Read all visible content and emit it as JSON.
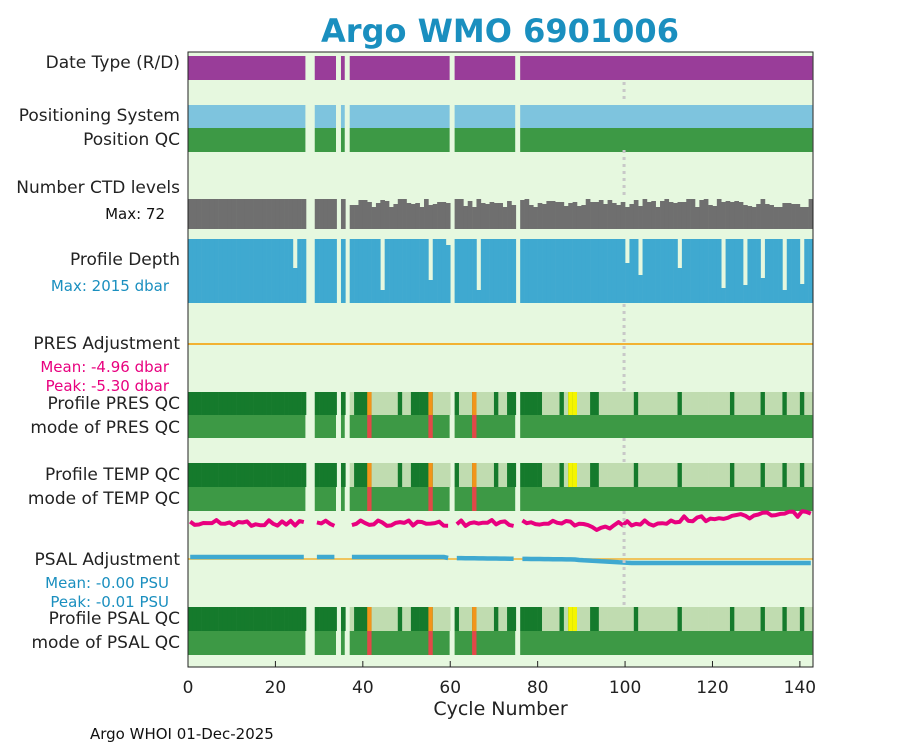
{
  "header": {
    "title": "Argo WMO 6901006"
  },
  "footer": {
    "text": "Argo WHOI 01-Dec-2025"
  },
  "rows": {
    "date_type": "Date Type (R/D)",
    "positioning_system": "Positioning System",
    "position_qc": "Position QC",
    "number_ctd": "Number CTD levels",
    "ctd_max": "Max: 72",
    "profile_depth": "Profile Depth",
    "depth_max": "Max: 2015 dbar",
    "pres_adjustment": "PRES Adjustment",
    "pres_mean": "Mean: -4.96 dbar",
    "pres_peak": "Peak: -5.30 dbar",
    "profile_pres_qc": "Profile PRES QC",
    "mode_pres_qc": "mode of PRES QC",
    "profile_temp_qc": "Profile TEMP QC",
    "mode_temp_qc": "mode of TEMP QC",
    "psal_adjustment": "PSAL Adjustment",
    "psal_mean": "Mean: -0.00 PSU",
    "psal_peak": "Peak: -0.01 PSU",
    "profile_psal_qc": "Profile PSAL QC",
    "mode_psal_qc": "mode of PSAL QC"
  },
  "chart_data": {
    "type": "timeline",
    "title": "Argo WMO 6901006",
    "xlabel": "Cycle Number",
    "xlim": [
      0,
      143
    ],
    "xticks": [
      0,
      20,
      40,
      60,
      80,
      100,
      120,
      140
    ],
    "cycles_segments": [
      [
        1,
        27
      ],
      [
        30,
        34
      ],
      [
        36,
        36
      ],
      [
        38,
        60
      ],
      [
        62,
        75
      ],
      [
        77,
        143
      ]
    ],
    "reference_line_cycle": 100,
    "pres_qc_markers": [
      {
        "cycle": 42,
        "flag": "orange"
      },
      {
        "cycle": 56,
        "flag": "orange"
      },
      {
        "cycle": 66,
        "flag": "orange"
      },
      {
        "cycle": 88,
        "flag": "yellow"
      },
      {
        "cycle": 89,
        "flag": "yellow"
      }
    ],
    "mode_qc_markers": [
      42,
      56,
      66
    ],
    "ctd_levels_max": 72,
    "profile_depth_max_dbar": 2015,
    "pres_adjustment_mean": -4.96,
    "pres_adjustment_peak": -5.3,
    "psal_adjustment_mean": -0.0,
    "psal_adjustment_peak": -0.01,
    "colors": {
      "background": "#e6f8df",
      "date_type": "#993d99",
      "positioning": "#7ec4de",
      "qc_good": "#3d9945",
      "qc_dark": "#157a2c",
      "qc_light": "#c0dcb0",
      "ctd": "#6f6f6f",
      "depth": "#3fa9d0",
      "pres_line": "#f2b233",
      "temp_trace": "#e8007f",
      "psal_trace": "#3fa9d0",
      "flag_orange": "#f2941a",
      "flag_red": "#e24848",
      "flag_yellow": "#f5f500",
      "title": "#1a8fbf"
    }
  }
}
